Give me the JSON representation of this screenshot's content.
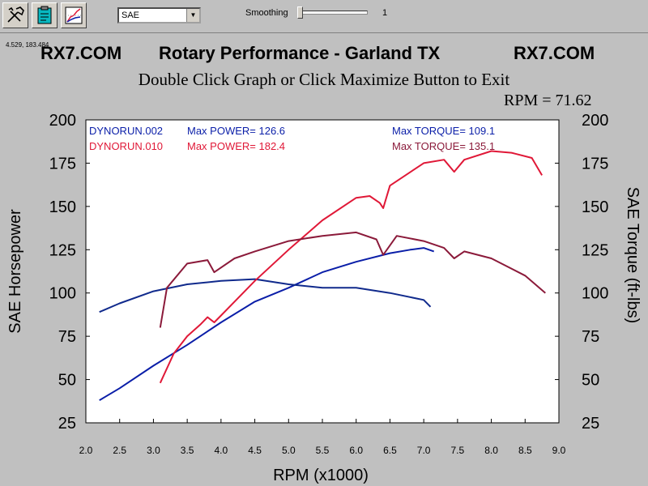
{
  "toolbar": {
    "buttons": [
      {
        "name": "tools-icon"
      },
      {
        "name": "clipboard-icon"
      },
      {
        "name": "graph-settings-icon"
      }
    ],
    "correction_select": "SAE",
    "smoothing_label": "Smoothing",
    "smoothing_value": "1",
    "smoothing_level": 1
  },
  "coord_readout": "4.529, 183.484",
  "header": {
    "left": "RX7.COM",
    "center": "Rotary Performance - Garland TX",
    "right": "RX7.COM"
  },
  "subtitle": "Double Click Graph or Click Maximize Button to Exit",
  "rpm_readout": "RPM = 71.62",
  "legend": {
    "run1": {
      "name": "DYNORUN.002",
      "power": "Max POWER= 126.6",
      "torque": "Max TORQUE= 109.1",
      "color": "#0a1ea8"
    },
    "run2": {
      "name": "DYNORUN.010",
      "power": "Max POWER= 182.4",
      "torque": "Max TORQUE= 135.1",
      "color": "#e01837"
    }
  },
  "chart_data": {
    "type": "line",
    "xlabel": "RPM (x1000)",
    "ylabel_left": "SAE Horsepower",
    "ylabel_right": "SAE Torque (ft-lbs)",
    "xlim": [
      2.0,
      9.0
    ],
    "ylim": [
      25,
      200
    ],
    "x_ticks": [
      "2.0",
      "2.5",
      "3.0",
      "3.5",
      "4.0",
      "4.5",
      "5.0",
      "5.5",
      "6.0",
      "6.5",
      "7.0",
      "7.5",
      "8.0",
      "8.5",
      "9.0"
    ],
    "y_ticks": [
      "25",
      "50",
      "75",
      "100",
      "125",
      "150",
      "175",
      "200"
    ],
    "grid": false,
    "series": [
      {
        "name": "DYNORUN.002",
        "quantity": "power",
        "color": "#0a1ea8",
        "x": [
          2.2,
          2.5,
          3.0,
          3.5,
          4.0,
          4.5,
          5.0,
          5.5,
          6.0,
          6.5,
          6.8,
          7.0,
          7.15
        ],
        "y": [
          38,
          45,
          58,
          70,
          83,
          95,
          103,
          112,
          118,
          123,
          125,
          126,
          124
        ]
      },
      {
        "name": "DYNORUN.002",
        "quantity": "torque",
        "color": "#102a8c",
        "x": [
          2.2,
          2.5,
          3.0,
          3.5,
          4.0,
          4.5,
          5.0,
          5.5,
          6.0,
          6.5,
          7.0,
          7.1
        ],
        "y": [
          89,
          94,
          101,
          105,
          107,
          108,
          105,
          103,
          103,
          100,
          96,
          92
        ]
      },
      {
        "name": "DYNORUN.010",
        "quantity": "power",
        "color": "#e01837",
        "x": [
          3.1,
          3.3,
          3.5,
          3.7,
          3.8,
          3.9,
          4.0,
          4.5,
          5.0,
          5.5,
          6.0,
          6.2,
          6.35,
          6.4,
          6.5,
          7.0,
          7.3,
          7.45,
          7.6,
          8.0,
          8.3,
          8.6,
          8.75
        ],
        "y": [
          48,
          65,
          75,
          82,
          86,
          83,
          87,
          107,
          125,
          142,
          155,
          156,
          152,
          149,
          162,
          175,
          177,
          170,
          177,
          182,
          181,
          178,
          168
        ]
      },
      {
        "name": "DYNORUN.010",
        "quantity": "torque",
        "color": "#8b1a3a",
        "x": [
          3.1,
          3.2,
          3.5,
          3.8,
          3.9,
          4.2,
          4.5,
          5.0,
          5.5,
          6.0,
          6.3,
          6.4,
          6.6,
          7.0,
          7.3,
          7.45,
          7.6,
          8.0,
          8.5,
          8.8
        ],
        "y": [
          80,
          103,
          117,
          119,
          112,
          120,
          124,
          130,
          133,
          135,
          131,
          122,
          133,
          130,
          126,
          120,
          124,
          120,
          110,
          100
        ]
      }
    ]
  }
}
